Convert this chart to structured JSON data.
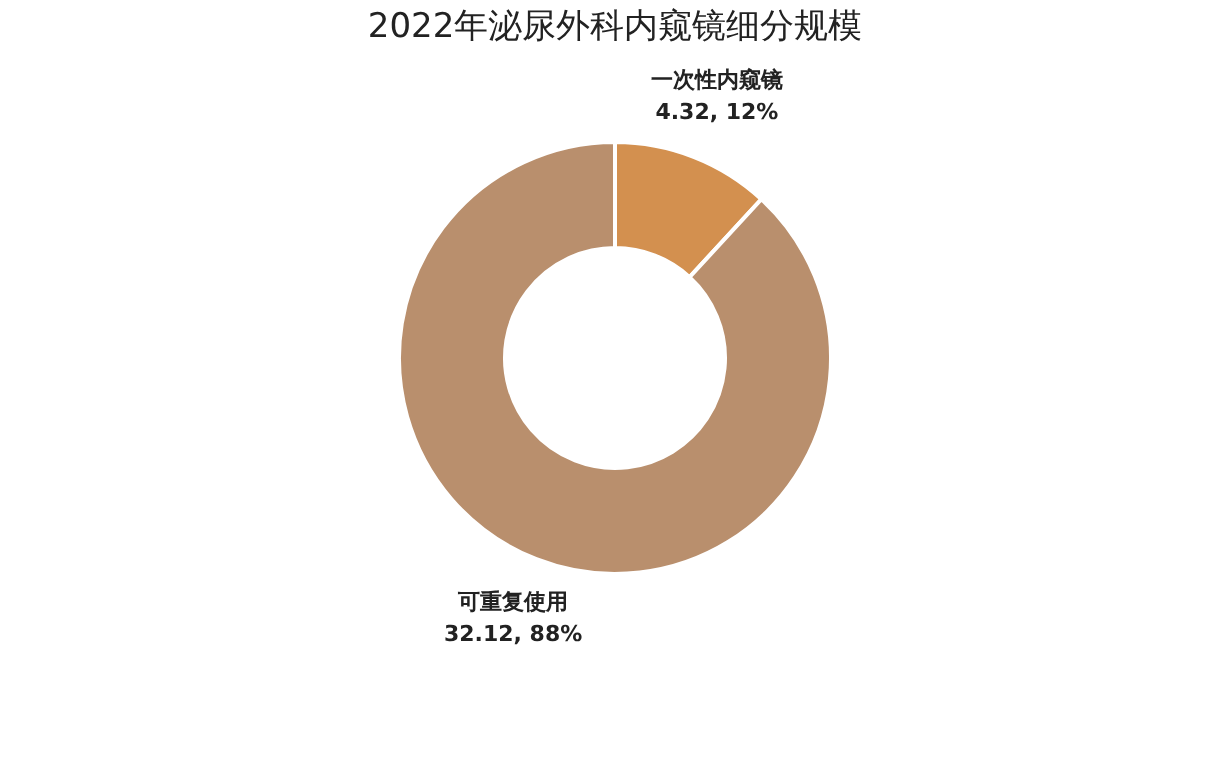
{
  "chart_data": {
    "type": "donut",
    "title": "2022年泌尿外科内窥镜细分规模",
    "categories": [
      "一次性内窥镜",
      "可重复使用"
    ],
    "values": [
      4.32,
      32.12
    ],
    "colors": [
      "#d3904f",
      "#b98f6d"
    ],
    "value_labels": [
      "4.32, 12%",
      "32.12, 88%"
    ]
  }
}
